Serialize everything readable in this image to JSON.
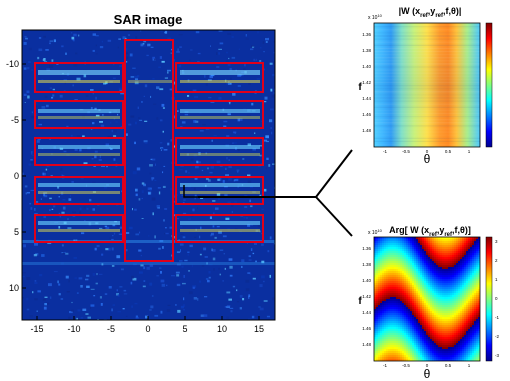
{
  "sar": {
    "title": "SAR image",
    "x_ticks": [
      "-15",
      "-10",
      "-5",
      "0",
      "5",
      "10",
      "15"
    ],
    "y_ticks": [
      "-10",
      "-5",
      "0",
      "5",
      "10"
    ]
  },
  "mag": {
    "title_main": "|W (x",
    "title_sub1": "ref",
    "title_mid": ",y",
    "title_sub2": "ref",
    "title_tail": ",f,θ)|",
    "xlabel": "θ",
    "ylabel": "f",
    "exponent": "x 10",
    "exponent_power": "10",
    "y_ticks": [
      "1.36",
      "1.38",
      "1.40",
      "1.42",
      "1.44",
      "1.46",
      "1.48"
    ],
    "x_ticks": [
      "-1",
      "-0.5",
      "0",
      "0.5",
      "1"
    ]
  },
  "phase": {
    "title_main": "Arg[ W (x",
    "title_sub1": "ref",
    "title_mid": ",y",
    "title_sub2": "ref",
    "title_tail": ",f,θ)]",
    "xlabel": "θ",
    "ylabel": "f",
    "exponent": "x 10",
    "exponent_power": "10",
    "y_ticks": [
      "1.36",
      "1.38",
      "1.40",
      "1.42",
      "1.44",
      "1.46",
      "1.48"
    ],
    "x_ticks": [
      "-1",
      "-0.5",
      "0",
      "0.5",
      "1"
    ],
    "cbar_ticks": [
      "3",
      "2",
      "1",
      "0",
      "-1",
      "-2",
      "-3"
    ]
  },
  "colors": {
    "box": "#e0001a",
    "jet_dark_blue": "#00008f",
    "jet_red": "#800000"
  }
}
